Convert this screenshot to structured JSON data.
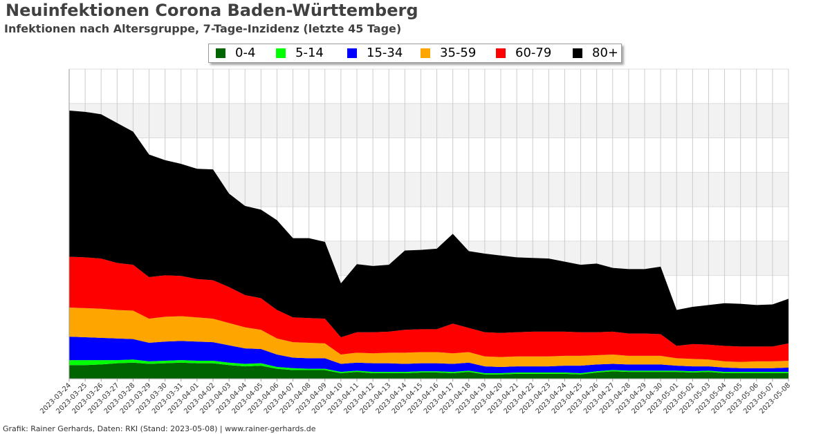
{
  "header": {
    "title": "Neuinfektionen Corona Baden-Württemberg",
    "subtitle": "Infektionen nach Altersgruppe, 7-Tage-Inzidenz (letzte 45 Tage)"
  },
  "footer": {
    "credit": "Grafik: Rainer Gerhards, Daten: RKI (Stand: 2023-05-08) | www.rainer-gerhards.de"
  },
  "chart_data": {
    "type": "area",
    "stacked": true,
    "grid": true,
    "legend_position": "top",
    "x": [
      "2023-03-24",
      "2023-03-25",
      "2023-03-26",
      "2023-03-27",
      "2023-03-28",
      "2023-03-29",
      "2023-03-30",
      "2023-03-31",
      "2023-04-01",
      "2023-04-02",
      "2023-04-03",
      "2023-04-04",
      "2023-04-05",
      "2023-04-06",
      "2023-04-07",
      "2023-04-08",
      "2023-04-09",
      "2023-04-10",
      "2023-04-11",
      "2023-04-12",
      "2023-04-13",
      "2023-04-14",
      "2023-04-15",
      "2023-04-16",
      "2023-04-17",
      "2023-04-18",
      "2023-04-19",
      "2023-04-20",
      "2023-04-21",
      "2023-04-22",
      "2023-04-23",
      "2023-04-24",
      "2023-04-25",
      "2023-04-26",
      "2023-04-27",
      "2023-04-28",
      "2023-04-29",
      "2023-04-30",
      "2023-05-01",
      "2023-05-02",
      "2023-05-03",
      "2023-05-04",
      "2023-05-05",
      "2023-05-06",
      "2023-05-07",
      "2023-05-08"
    ],
    "series": [
      {
        "name": "0-4",
        "color": "#006400",
        "values": [
          22,
          22,
          23,
          25,
          26,
          24,
          25,
          26,
          25,
          25,
          22,
          20,
          21,
          16,
          14,
          14,
          14,
          9,
          11,
          9,
          9,
          9,
          10,
          10,
          9,
          11,
          7,
          7,
          8,
          8,
          8,
          8,
          7,
          10,
          12,
          11,
          11,
          11,
          11,
          10,
          11,
          9,
          9,
          9,
          9,
          9
        ]
      },
      {
        "name": "5-14",
        "color": "#00ff00",
        "values": [
          8,
          8,
          7,
          5,
          5,
          4,
          4,
          4,
          4,
          4,
          4,
          4,
          4,
          3,
          3,
          2,
          2,
          2,
          2,
          2,
          2,
          2,
          2,
          2,
          2,
          2,
          2,
          2,
          2,
          2,
          2,
          2,
          2,
          2,
          2,
          2,
          2,
          2,
          2,
          2,
          2,
          2,
          2,
          2,
          2,
          2
        ]
      },
      {
        "name": "15-34",
        "color": "#0000ff",
        "values": [
          38,
          37,
          36,
          35,
          33,
          30,
          31,
          31,
          31,
          30,
          28,
          25,
          23,
          20,
          17,
          17,
          17,
          13,
          13,
          14,
          14,
          13,
          13,
          13,
          13,
          13,
          11,
          10,
          10,
          10,
          10,
          11,
          12,
          11,
          10,
          10,
          10,
          10,
          8,
          8,
          7,
          7,
          6,
          6,
          6,
          7
        ]
      },
      {
        "name": "35-59",
        "color": "#ffa500",
        "values": [
          47,
          47,
          47,
          46,
          46,
          39,
          40,
          40,
          39,
          38,
          36,
          34,
          31,
          26,
          25,
          25,
          24,
          15,
          16,
          16,
          17,
          18,
          18,
          18,
          17,
          17,
          16,
          16,
          16,
          16,
          16,
          16,
          16,
          15,
          15,
          14,
          14,
          14,
          12,
          12,
          11,
          10,
          10,
          11,
          11,
          11
        ]
      },
      {
        "name": "60-79",
        "color": "#ff0000",
        "values": [
          82,
          82,
          81,
          76,
          74,
          67,
          67,
          65,
          62,
          62,
          58,
          52,
          51,
          46,
          40,
          40,
          40,
          28,
          33,
          34,
          34,
          37,
          37,
          37,
          48,
          39,
          39,
          39,
          39,
          40,
          40,
          39,
          38,
          37,
          37,
          36,
          36,
          35,
          20,
          24,
          24,
          25,
          25,
          24,
          24,
          28
        ]
      },
      {
        "name": "80+",
        "color": "#000000",
        "values": [
          236,
          235,
          233,
          226,
          215,
          198,
          186,
          181,
          178,
          179,
          151,
          144,
          143,
          145,
          128,
          129,
          124,
          87,
          110,
          107,
          108,
          128,
          128,
          130,
          145,
          124,
          127,
          125,
          121,
          119,
          118,
          113,
          109,
          111,
          103,
          104,
          104,
          109,
          58,
          60,
          64,
          69,
          69,
          67,
          68,
          72
        ]
      }
    ],
    "ylim": [
      0,
      500
    ]
  }
}
